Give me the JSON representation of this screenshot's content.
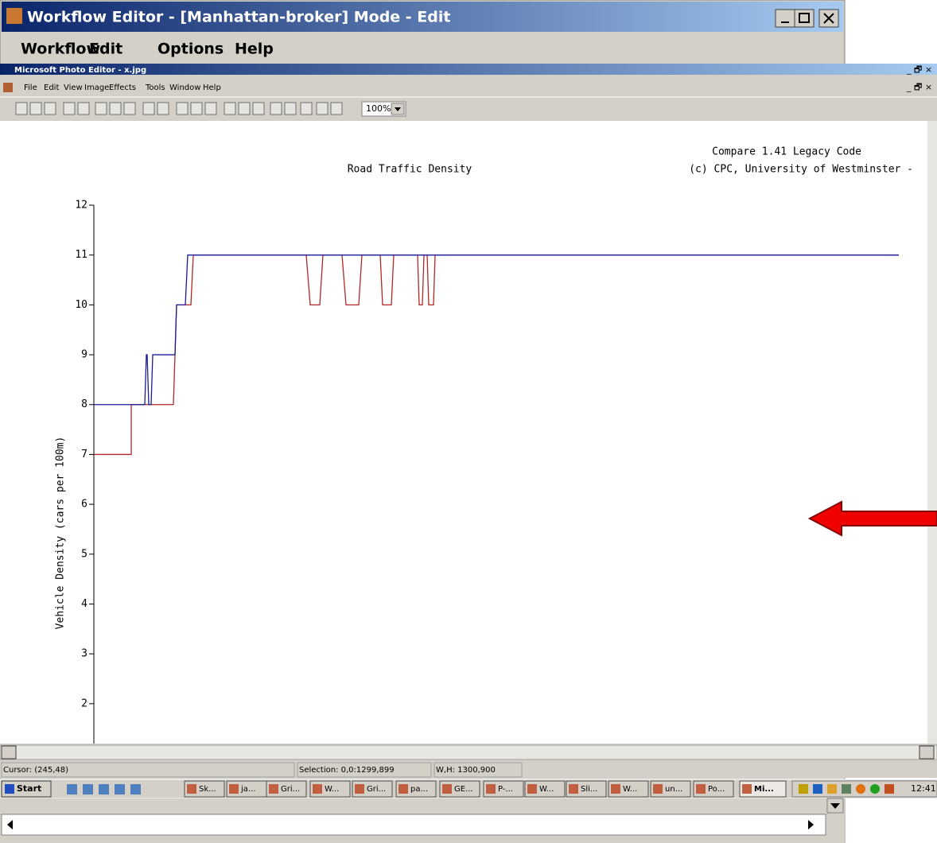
{
  "workflow_window": {
    "title": "Workflow Editor - [Manhattan-broker] Mode - Edit",
    "menu": [
      "Workflow",
      "Edit",
      "Options",
      "Help"
    ]
  },
  "photo_editor": {
    "title": "Microsoft Photo Editor - x.jpg",
    "menu": [
      "File",
      "Edit",
      "View",
      "Image",
      "Effects",
      "Tools",
      "Window",
      "Help"
    ],
    "zoom": "100%",
    "status": [
      "Cursor: (245,48)",
      "Selection: 0,0:1299,899",
      "W,H: 1300,900"
    ]
  },
  "taskbar": {
    "start": "Start",
    "items": [
      "Sk...",
      "ja...",
      "Gri...",
      "W...",
      "Gri...",
      "pa...",
      "GE...",
      "P-...",
      "W...",
      "Sli...",
      "W...",
      "un...",
      "Po...",
      "Mi..."
    ],
    "clock": "12:41"
  },
  "chart_data": {
    "type": "line",
    "title": "Road Traffic Density",
    "annotations": [
      "Compare 1.41  Legacy Code",
      "(c) CPC, University of Westminster -"
    ],
    "y_label": "Vehicle Density (cars per 100m)",
    "xlim": [
      0,
      1012
    ],
    "ylim": [
      1.2,
      12
    ],
    "yticks": [
      2,
      3,
      4,
      5,
      6,
      7,
      8,
      9,
      10,
      11,
      12
    ],
    "series": [
      {
        "color": "#b02828",
        "x": [
          0,
          47,
          47,
          100,
          104,
          122,
          125,
          267,
          272,
          284,
          288,
          312,
          317,
          333,
          337,
          360,
          363,
          374,
          377,
          407,
          409,
          413,
          415,
          419,
          421,
          427,
          429,
          1012
        ],
        "values": [
          7,
          7,
          8,
          8,
          10,
          10,
          11,
          11,
          10,
          10,
          11,
          11,
          10,
          10,
          11,
          11,
          10,
          10,
          11,
          11,
          10,
          10,
          11,
          11,
          10,
          10,
          11,
          11
        ]
      },
      {
        "color": "#1c1c9a",
        "x": [
          0,
          64,
          66,
          67,
          69,
          72,
          74,
          102,
          104,
          115,
          118,
          1012
        ],
        "values": [
          8,
          8,
          9,
          9,
          8,
          8,
          9,
          9,
          10,
          10,
          11,
          11
        ]
      }
    ]
  }
}
